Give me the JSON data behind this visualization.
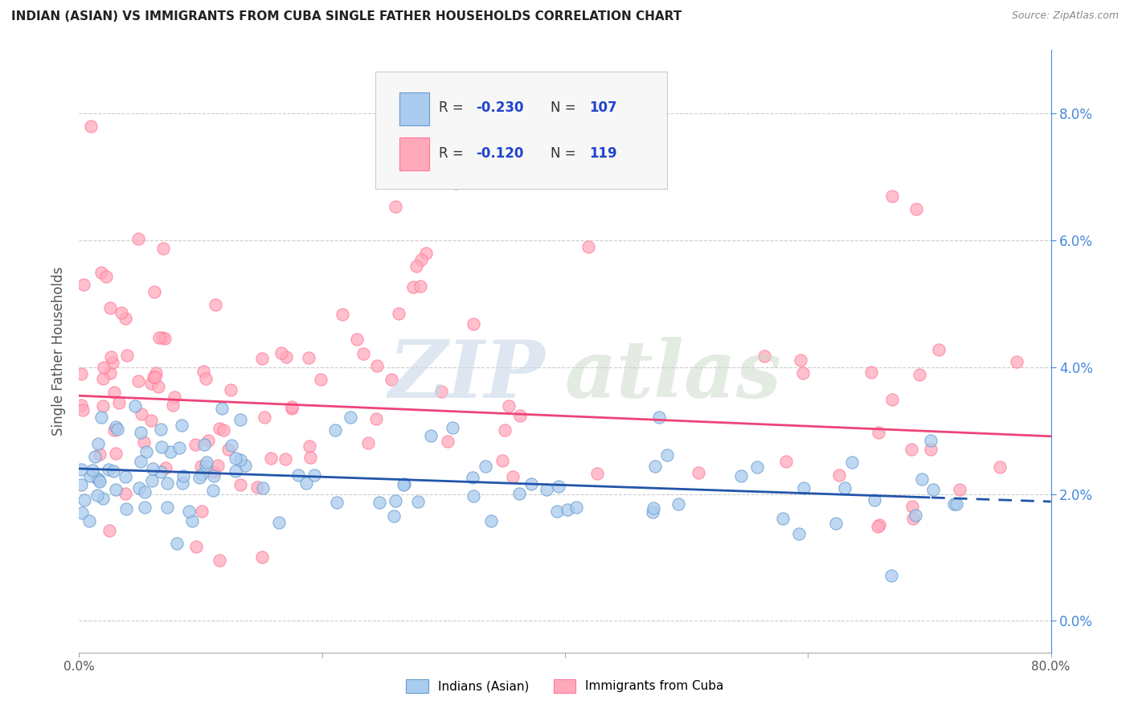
{
  "title": "INDIAN (ASIAN) VS IMMIGRANTS FROM CUBA SINGLE FATHER HOUSEHOLDS CORRELATION CHART",
  "source": "Source: ZipAtlas.com",
  "ylabel": "Single Father Households",
  "legend_label1": "Indians (Asian)",
  "legend_label2": "Immigrants from Cuba",
  "color_blue_fill": "#aaccee",
  "color_blue_edge": "#6699cc",
  "color_pink_fill": "#ffaabb",
  "color_pink_edge": "#ff7799",
  "color_line_blue": "#2255aa",
  "color_line_pink": "#ee4477",
  "grid_color": "#cccccc",
  "ytick_color": "#4488dd",
  "xlim": [
    0.0,
    80.0
  ],
  "ylim": [
    -0.5,
    9.0
  ],
  "yticks": [
    0,
    2,
    4,
    6,
    8
  ],
  "ytick_labels": [
    "0.0%",
    "2.0%",
    "4.0%",
    "6.0%",
    "8.0%"
  ],
  "blue_x_intercept": 2.4,
  "blue_slope": -0.0065,
  "pink_x_intercept": 3.55,
  "pink_slope": -0.008,
  "dash_start": 70.0
}
